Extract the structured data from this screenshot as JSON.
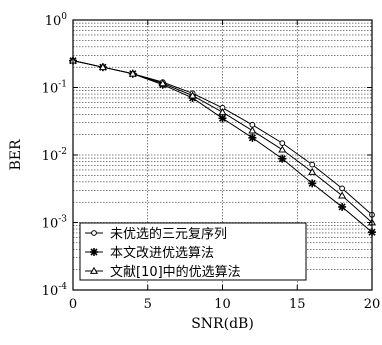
{
  "chart_data": {
    "type": "line",
    "xlabel": "SNR(dB)",
    "ylabel": "BER",
    "xlim": [
      0,
      20
    ],
    "ylim": [
      0.0001,
      1
    ],
    "yscale": "log",
    "grid": true,
    "legend_position": "bottom-left",
    "x_ticks": [
      "0",
      "5",
      "10",
      "15",
      "20"
    ],
    "y_ticks": [
      {
        "base": "10",
        "exp": "0"
      },
      {
        "base": "10",
        "exp": "-1"
      },
      {
        "base": "10",
        "exp": "-2"
      },
      {
        "base": "10",
        "exp": "-3"
      },
      {
        "base": "10",
        "exp": "-4"
      }
    ],
    "x": [
      0,
      2,
      4,
      6,
      8,
      10,
      12,
      14,
      16,
      18,
      20
    ],
    "series": [
      {
        "name": "未优选的三元复序列",
        "marker": "circle",
        "values": [
          0.25,
          0.2,
          0.16,
          0.12,
          0.082,
          0.05,
          0.028,
          0.015,
          0.0072,
          0.0032,
          0.0013
        ]
      },
      {
        "name": "本文改进优选算法",
        "marker": "star",
        "values": [
          0.25,
          0.2,
          0.16,
          0.11,
          0.07,
          0.035,
          0.018,
          0.0088,
          0.0038,
          0.0017,
          0.00072
        ]
      },
      {
        "name": "文献[10]中的优选算法",
        "marker": "triangle",
        "values": [
          0.25,
          0.2,
          0.16,
          0.115,
          0.076,
          0.043,
          0.023,
          0.012,
          0.0056,
          0.0025,
          0.001
        ]
      }
    ]
  }
}
